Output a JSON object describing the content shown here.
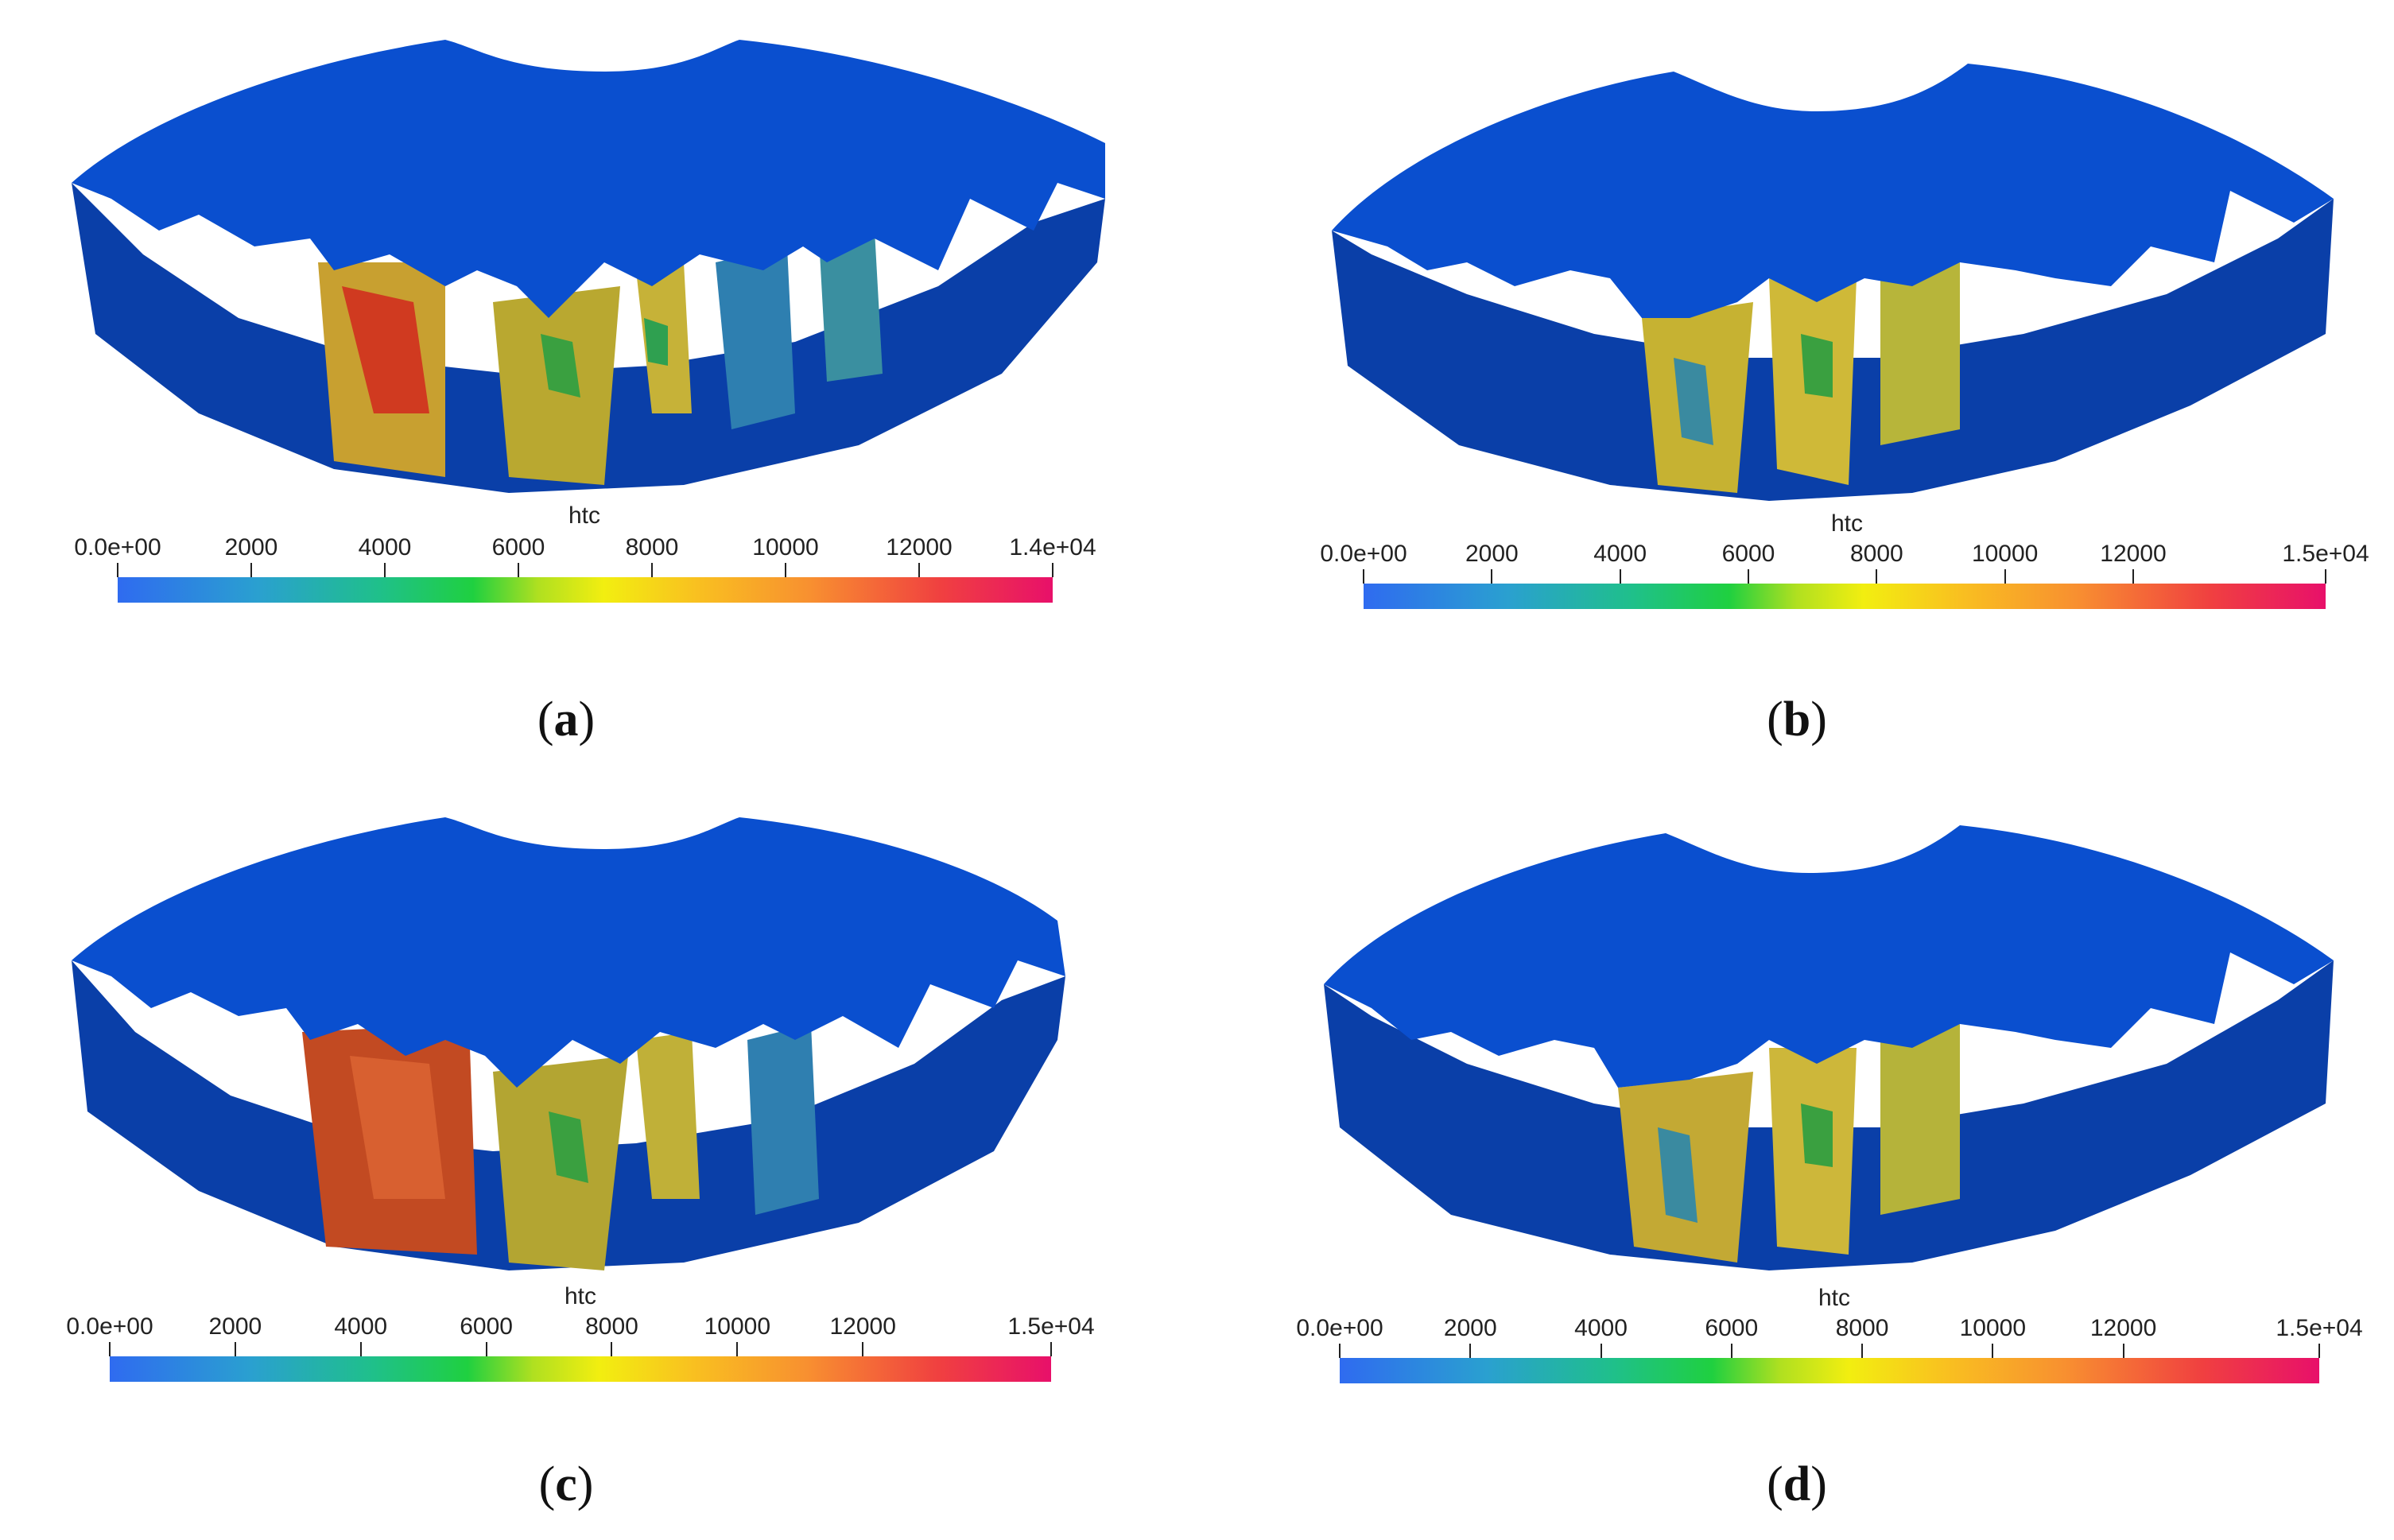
{
  "colorbar_title": "htc",
  "palette": [
    "#2f6bf0",
    "#2aa0d0",
    "#1fc08a",
    "#1fd040",
    "#f2ee10",
    "#f89030",
    "#e8106a"
  ],
  "gear_color": "#0a4fcf",
  "panels": [
    {
      "caption_letter": "a",
      "ticks": [
        "0.0e+00",
        "2000",
        "4000",
        "6000",
        "8000",
        "10000",
        "12000",
        "1.4e+04"
      ],
      "range": [
        0,
        14000
      ]
    },
    {
      "caption_letter": "b",
      "ticks": [
        "0.0e+00",
        "2000",
        "4000",
        "6000",
        "8000",
        "10000",
        "12000",
        "1.5e+04"
      ],
      "range": [
        0,
        15000
      ]
    },
    {
      "caption_letter": "c",
      "ticks": [
        "0.0e+00",
        "2000",
        "4000",
        "6000",
        "8000",
        "10000",
        "12000",
        "1.5e+04"
      ],
      "range": [
        0,
        15000
      ]
    },
    {
      "caption_letter": "d",
      "ticks": [
        "0.0e+00",
        "2000",
        "4000",
        "6000",
        "8000",
        "10000",
        "12000",
        "1.5e+04"
      ],
      "range": [
        0,
        15000
      ]
    }
  ]
}
